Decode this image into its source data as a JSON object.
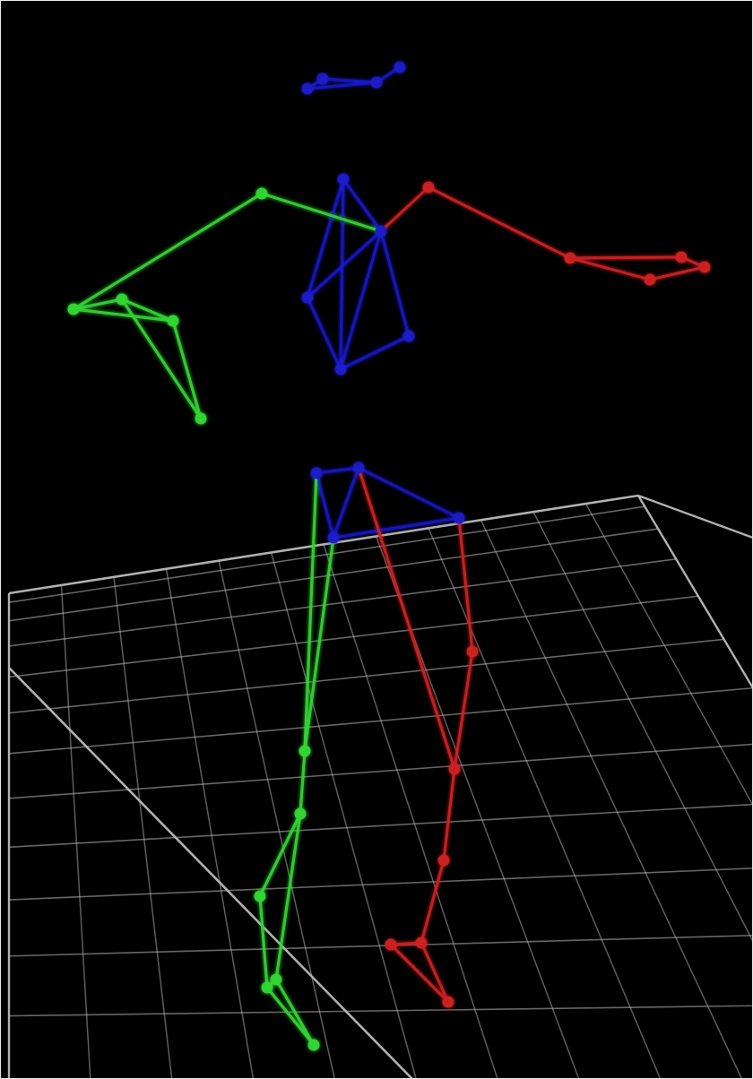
{
  "scene": {
    "background_color": "#000000",
    "floor_grid_color": "#b9b9b9",
    "subject": "motion-capture-skeleton",
    "colors": {
      "torso": "#1a1ac8",
      "left_side": "#33d633",
      "right_side": "#cc2020"
    },
    "icons": [
      "skeleton-figure",
      "floor-grid"
    ]
  }
}
